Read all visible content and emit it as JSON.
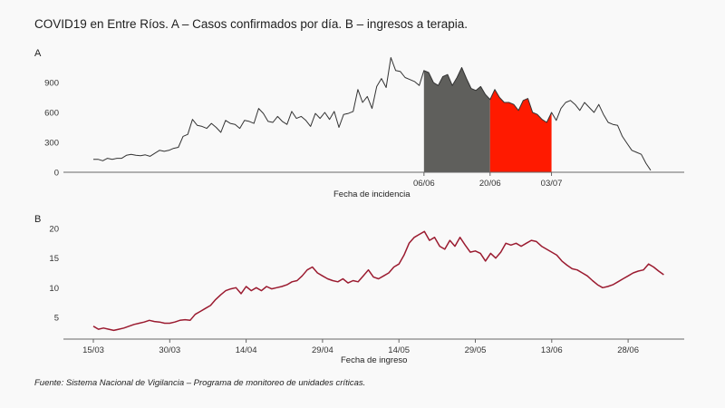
{
  "title": "COVID19 en Entre Ríos. A – Casos confirmados por día. B – ingresos a terapia.",
  "source": "Fuente: Sistema Nacional de Vigilancia – Programa de monitoreo de unidades críticas.",
  "colors": {
    "background": "#f9f9f9",
    "line_a": "#333333",
    "fill_gray": "#5f5f5c",
    "fill_red": "#ff1a00",
    "line_b": "#9b1b30",
    "axis": "#666666"
  },
  "chart_data": [
    {
      "panel": "A",
      "type": "line",
      "xlabel": "Fecha de incidencia",
      "ylabel": "",
      "ylim": [
        0,
        1200
      ],
      "yticks": [
        0,
        300,
        600,
        900
      ],
      "xtick_labels": [
        "06/06",
        "20/06",
        "03/07"
      ],
      "xtick_index": [
        70,
        84,
        97
      ],
      "grid": false,
      "shaded_regions": [
        {
          "from_index": 70,
          "to_index": 84,
          "color": "gray"
        },
        {
          "from_index": 84,
          "to_index": 97,
          "color": "red"
        }
      ],
      "series": [
        {
          "values": [
            130,
            130,
            115,
            140,
            130,
            140,
            140,
            170,
            180,
            170,
            165,
            175,
            160,
            190,
            220,
            210,
            220,
            240,
            250,
            360,
            380,
            530,
            470,
            460,
            440,
            490,
            450,
            400,
            520,
            490,
            480,
            440,
            520,
            510,
            490,
            640,
            590,
            510,
            500,
            560,
            510,
            480,
            610,
            540,
            560,
            520,
            460,
            590,
            540,
            600,
            530,
            610,
            450,
            580,
            590,
            610,
            830,
            700,
            760,
            640,
            860,
            940,
            850,
            1150,
            1020,
            1010,
            950,
            930,
            910,
            870,
            1020,
            1000,
            900,
            870,
            960,
            980,
            870,
            950,
            1050,
            940,
            840,
            820,
            860,
            780,
            730,
            830,
            750,
            700,
            700,
            680,
            620,
            720,
            740,
            600,
            580,
            530,
            500,
            600,
            520,
            640,
            700,
            720,
            680,
            620,
            700,
            650,
            600,
            680,
            580,
            500,
            480,
            470,
            360,
            290,
            220,
            200,
            180,
            90,
            20
          ]
        }
      ]
    },
    {
      "panel": "B",
      "type": "line",
      "xlabel": "Fecha de ingreso",
      "ylabel": "",
      "ylim": [
        2,
        20
      ],
      "yticks": [
        5,
        10,
        15,
        20
      ],
      "xtick_labels": [
        "15/03",
        "30/03",
        "14/04",
        "29/04",
        "14/05",
        "29/05",
        "13/06",
        "28/06"
      ],
      "xtick_index": [
        0,
        15,
        30,
        45,
        60,
        75,
        90,
        105
      ],
      "grid": false,
      "series": [
        {
          "values": [
            3.5,
            3.0,
            3.2,
            3.0,
            2.8,
            3.0,
            3.2,
            3.5,
            3.8,
            4.0,
            4.2,
            4.5,
            4.3,
            4.2,
            4.0,
            4.0,
            4.2,
            4.5,
            4.6,
            4.5,
            5.5,
            6.0,
            6.5,
            7.0,
            8.0,
            8.8,
            9.5,
            9.8,
            10.0,
            9.0,
            10.2,
            9.5,
            10.0,
            9.5,
            10.2,
            9.8,
            10.0,
            10.2,
            10.5,
            11.0,
            11.2,
            12.0,
            13.0,
            13.5,
            12.5,
            12.0,
            11.5,
            11.2,
            11.0,
            11.5,
            10.8,
            11.2,
            11.0,
            12.0,
            13.0,
            11.8,
            11.5,
            12.0,
            12.5,
            13.5,
            14.0,
            15.5,
            17.5,
            18.5,
            19.0,
            19.5,
            18.0,
            18.5,
            17.0,
            16.5,
            18.0,
            17.0,
            18.5,
            17.2,
            16.0,
            16.2,
            15.8,
            14.5,
            15.8,
            15.0,
            16.0,
            17.5,
            17.2,
            17.5,
            17.0,
            17.5,
            18.0,
            17.8,
            17.0,
            16.5,
            16.0,
            15.5,
            14.5,
            13.8,
            13.2,
            13.0,
            12.5,
            12.0,
            11.2,
            10.5,
            10.0,
            10.2,
            10.5,
            11.0,
            11.5,
            12.0,
            12.5,
            12.8,
            13.0,
            14.0,
            13.5,
            12.8,
            12.2
          ]
        }
      ]
    }
  ]
}
